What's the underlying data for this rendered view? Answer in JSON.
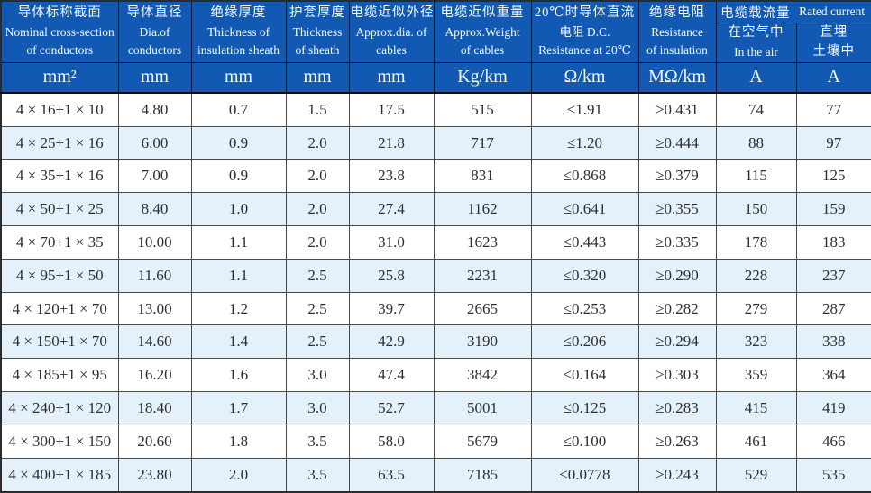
{
  "colors": {
    "header_bg": "#1159b2",
    "header_text": "#f5f8ff",
    "row_alt_bg": "#e4f1fb",
    "row_bg": "#ffffff",
    "data_text": "#2e2e2e",
    "grid_line": "#4a4a4a"
  },
  "table": {
    "headers": [
      {
        "lines": [
          "导体标称截面",
          "Nominal cross-section",
          "of conductors"
        ],
        "unit": "mm²"
      },
      {
        "lines": [
          "导体直径",
          "Dia.of",
          "conductors"
        ],
        "unit": "mm"
      },
      {
        "lines": [
          "绝缘厚度",
          "Thickness of",
          "insulation sheath"
        ],
        "unit": "mm"
      },
      {
        "lines": [
          "护套厚度",
          "Thickness",
          "of sheath"
        ],
        "unit": "mm"
      },
      {
        "lines": [
          "电缆近似外径",
          "Approx.dia. of",
          "cables"
        ],
        "unit": "mm"
      },
      {
        "lines": [
          "电缆近似重量",
          "Approx.Weight",
          "of cables"
        ],
        "unit": "Kg/km"
      },
      {
        "lines": [
          "20℃时导体直流",
          "电阻 D.C.",
          "Resistance at 20℃"
        ],
        "unit": "Ω/km"
      },
      {
        "lines": [
          "绝缘电阻",
          "Resistance",
          "of insulation"
        ],
        "unit": "MΩ/km"
      }
    ],
    "current_group": {
      "zh": "电缆载流量",
      "en": "Rated current",
      "sub": [
        {
          "lines": [
            "在空气中",
            "In the air"
          ],
          "unit": "A"
        },
        {
          "lines": [
            "直埋",
            "土壤中"
          ],
          "unit": "A"
        }
      ]
    },
    "rows": [
      [
        "4 × 16+1 × 10",
        "4.80",
        "0.7",
        "1.5",
        "17.5",
        "515",
        "≤1.91",
        "≥0.431",
        "74",
        "77"
      ],
      [
        "4 × 25+1 × 16",
        "6.00",
        "0.9",
        "2.0",
        "21.8",
        "717",
        "≤1.20",
        "≥0.444",
        "88",
        "97"
      ],
      [
        "4 × 35+1 × 16",
        "7.00",
        "0.9",
        "2.0",
        "23.8",
        "831",
        "≤0.868",
        "≥0.379",
        "115",
        "125"
      ],
      [
        "4 × 50+1 × 25",
        "8.40",
        "1.0",
        "2.0",
        "27.4",
        "1162",
        "≤0.641",
        "≥0.355",
        "150",
        "159"
      ],
      [
        "4 × 70+1 × 35",
        "10.00",
        "1.1",
        "2.0",
        "31.0",
        "1623",
        "≤0.443",
        "≥0.335",
        "178",
        "183"
      ],
      [
        "4 × 95+1 × 50",
        "11.60",
        "1.1",
        "2.5",
        "25.8",
        "2231",
        "≤0.320",
        "≥0.290",
        "228",
        "237"
      ],
      [
        "4 × 120+1 × 70",
        "13.00",
        "1.2",
        "2.5",
        "39.7",
        "2665",
        "≤0.253",
        "≥0.282",
        "279",
        "287"
      ],
      [
        "4 × 150+1 × 70",
        "14.60",
        "1.4",
        "2.5",
        "42.9",
        "3190",
        "≤0.206",
        "≥0.294",
        "323",
        "338"
      ],
      [
        "4 × 185+1 × 95",
        "16.20",
        "1.6",
        "3.0",
        "47.4",
        "3842",
        "≤0.164",
        "≥0.303",
        "359",
        "364"
      ],
      [
        "4 × 240+1 × 120",
        "18.40",
        "1.7",
        "3.0",
        "52.7",
        "5001",
        "≤0.125",
        "≥0.283",
        "415",
        "419"
      ],
      [
        "4 × 300+1 × 150",
        "20.60",
        "1.8",
        "3.5",
        "58.0",
        "5679",
        "≤0.100",
        "≥0.263",
        "461",
        "466"
      ],
      [
        "4 × 400+1 × 185",
        "23.80",
        "2.0",
        "3.5",
        "63.5",
        "7185",
        "≤0.0778",
        "≥0.243",
        "529",
        "535"
      ]
    ]
  }
}
